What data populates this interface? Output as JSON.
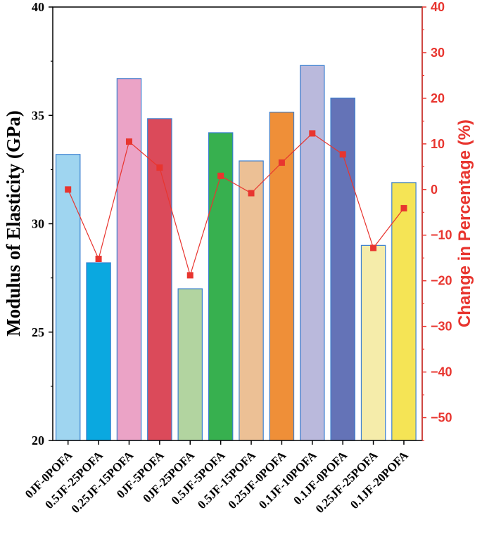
{
  "chart_data": {
    "type": "bar",
    "title": "",
    "xlabel": "",
    "ylabel": "Modulus of Elasticity (GPa)",
    "ylim": [
      20,
      40
    ],
    "yticks": [
      20,
      25,
      30,
      35,
      40
    ],
    "categories": [
      "0JF-0POFA",
      "0.5JF-25POFA",
      "0.25JF-15POFA",
      "0JF-5POFA",
      "0JF-25POFA",
      "0.5JF-5POFA",
      "0.5JF-15POFA",
      "0.25JF-0POFA",
      "0.1JF-10POFA",
      "0.1JF-0POFA",
      "0.25JF-25POFA",
      "0.1JF-20POFA"
    ],
    "values": [
      33.2,
      28.2,
      36.7,
      34.85,
      27.0,
      34.2,
      32.9,
      35.15,
      37.3,
      35.8,
      29.0,
      31.9
    ],
    "bar_colors": [
      "#9fd5f0",
      "#0aa8e0",
      "#eba3c6",
      "#db4a5a",
      "#b2d4a0",
      "#37b04f",
      "#ecc095",
      "#ef8f38",
      "#bab9dc",
      "#6473b7",
      "#f5ecaa",
      "#f5e455"
    ],
    "bar_edge_color": "#3a7fd0",
    "secondary_axis": {
      "ylabel": "Change in Percentage (%)",
      "ylim": [
        -55,
        40
      ],
      "yticks": [
        -50,
        -40,
        -30,
        -20,
        -10,
        0,
        10,
        20,
        30,
        40
      ],
      "color": "#e8352f",
      "series_type": "line-marker",
      "values": [
        0,
        -15.2,
        10.5,
        4.8,
        -18.8,
        3.0,
        -0.8,
        5.9,
        12.3,
        7.7,
        -12.8,
        -4.1
      ]
    }
  }
}
